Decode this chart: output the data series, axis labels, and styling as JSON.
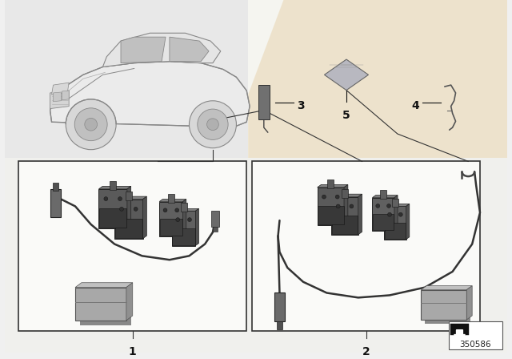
{
  "bg_color": "#f0f0f0",
  "top_left_bg": "#e8e8e8",
  "top_right_bg": "#f5f0e8",
  "tan_stripe_color": "#e8d8b8",
  "box_bg": "#ffffff",
  "box_border": "#333333",
  "watermark_color": "#d0c8b8",
  "pad_color": "#606060",
  "pad_dark": "#404040",
  "wire_color": "#333333",
  "grease_color": "#a0a0a0",
  "grease_shadow": "#808080",
  "label_color": "#111111",
  "diagram_number": "350586",
  "figsize": [
    6.4,
    4.48
  ],
  "dpi": 100
}
